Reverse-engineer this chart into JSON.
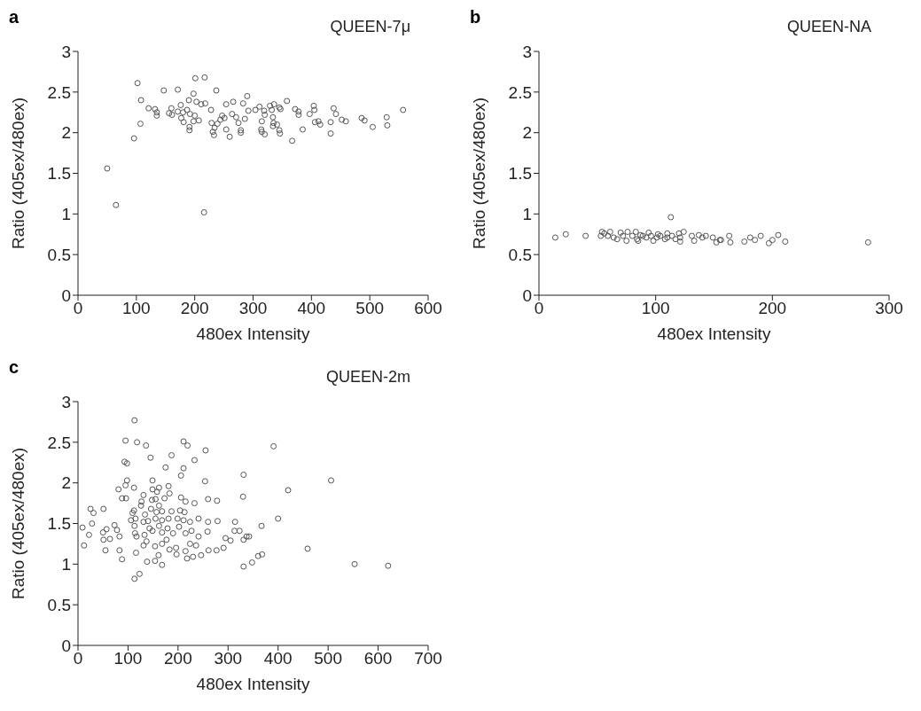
{
  "chart_data": [
    {
      "type": "scatter",
      "title": "QUEEN-7μ",
      "annotations": [
        "a"
      ],
      "xlabel": "480ex Intensity",
      "ylabel": "Ratio (405ex/480ex)",
      "xlim": [
        0,
        600
      ],
      "xticks": [
        0,
        100,
        200,
        300,
        400,
        500,
        600
      ],
      "ylim": [
        0,
        3
      ],
      "yticks": [
        0,
        0.5,
        1,
        1.5,
        2,
        2.5,
        3
      ],
      "marker": "circle",
      "grid": false,
      "legend": false,
      "series": [
        {
          "color": "#555555",
          "x": [
            50,
            65,
            96,
            102,
            108,
            107,
            121,
            132,
            135,
            135,
            147,
            156,
            160,
            161,
            171,
            171,
            176,
            177,
            181,
            180,
            187,
            192,
            200,
            190,
            198,
            191,
            191,
            201,
            217,
            198,
            207,
            203,
            211,
            218,
            216,
            228,
            237,
            229,
            234,
            231,
            233,
            239,
            244,
            247,
            251,
            254,
            254,
            260,
            264,
            266,
            271,
            275,
            279,
            279,
            283,
            286,
            290,
            292,
            304,
            311,
            319,
            320,
            315,
            314,
            315,
            320,
            329,
            334,
            335,
            336,
            332,
            334,
            345,
            346,
            345,
            347,
            341,
            358,
            367,
            372,
            378,
            378,
            385,
            397,
            404,
            405,
            406,
            412,
            415,
            433,
            433,
            438,
            442,
            452,
            459,
            486,
            491,
            505,
            529,
            530,
            557
          ],
          "values": [
            1.56,
            1.11,
            1.93,
            2.61,
            2.4,
            2.11,
            2.3,
            2.29,
            2.25,
            2.21,
            2.52,
            2.24,
            2.3,
            2.22,
            2.53,
            2.26,
            2.34,
            2.18,
            2.13,
            2.25,
            2.28,
            2.23,
            2.21,
            2.4,
            2.48,
            2.07,
            2.03,
            2.67,
            2.68,
            2.14,
            2.15,
            2.38,
            2.35,
            2.36,
            1.02,
            2.28,
            2.52,
            2.12,
            2.06,
            2.01,
            1.97,
            2.11,
            2.16,
            2.21,
            2.18,
            2.35,
            2.04,
            1.95,
            2.23,
            2.38,
            2.19,
            2.12,
            2.03,
            2.0,
            2.36,
            2.17,
            2.45,
            2.27,
            2.28,
            2.32,
            2.27,
            2.22,
            2.14,
            2.04,
            2.01,
            1.98,
            2.33,
            2.19,
            2.12,
            2.35,
            2.28,
            2.08,
            2.03,
            1.99,
            2.31,
            2.29,
            2.1,
            2.39,
            1.9,
            2.29,
            2.26,
            2.22,
            2.04,
            2.23,
            2.33,
            2.28,
            2.13,
            2.14,
            2.1,
            2.13,
            1.99,
            2.3,
            2.23,
            2.16,
            2.14,
            2.18,
            2.15,
            2.07,
            2.19,
            2.09,
            2.28
          ]
        }
      ]
    },
    {
      "type": "scatter",
      "title": "QUEEN-NA",
      "annotations": [
        "b"
      ],
      "xlabel": "480ex Intensity",
      "ylabel": "Ratio (405ex/480ex)",
      "xlim": [
        0,
        300
      ],
      "xticks": [
        0,
        100,
        200,
        300
      ],
      "ylim": [
        0,
        3
      ],
      "yticks": [
        0,
        0.5,
        1,
        1.5,
        2,
        2.5,
        3
      ],
      "marker": "circle",
      "grid": false,
      "legend": false,
      "series": [
        {
          "color": "#555555",
          "x": [
            14,
            23,
            40,
            53,
            54,
            56,
            59,
            61,
            64,
            67,
            70,
            72,
            75,
            76,
            80,
            83,
            84,
            85,
            87,
            89,
            92,
            94,
            96,
            98,
            101,
            102,
            104,
            108,
            110,
            110,
            113,
            114,
            117,
            120,
            121,
            121,
            124,
            131,
            133,
            137,
            140,
            143,
            149,
            152,
            155,
            156,
            163,
            164,
            176,
            181,
            185,
            190,
            197,
            200,
            205,
            211,
            282
          ],
          "values": [
            0.71,
            0.75,
            0.73,
            0.73,
            0.78,
            0.76,
            0.73,
            0.78,
            0.71,
            0.69,
            0.77,
            0.73,
            0.67,
            0.78,
            0.73,
            0.78,
            0.69,
            0.67,
            0.74,
            0.73,
            0.71,
            0.77,
            0.73,
            0.67,
            0.71,
            0.75,
            0.73,
            0.69,
            0.71,
            0.76,
            0.96,
            0.73,
            0.69,
            0.76,
            0.71,
            0.66,
            0.78,
            0.73,
            0.67,
            0.74,
            0.71,
            0.73,
            0.71,
            0.65,
            0.68,
            0.68,
            0.73,
            0.65,
            0.66,
            0.71,
            0.68,
            0.73,
            0.64,
            0.68,
            0.74,
            0.66,
            0.65
          ]
        }
      ]
    },
    {
      "type": "scatter",
      "title": "QUEEN-2m",
      "annotations": [
        "c"
      ],
      "xlabel": "480ex Intensity",
      "ylabel": "Ratio (405ex/480ex)",
      "xlim": [
        0,
        700
      ],
      "xticks": [
        0,
        100,
        200,
        300,
        400,
        500,
        600,
        700
      ],
      "ylim": [
        0,
        3
      ],
      "yticks": [
        0,
        0.5,
        1,
        1.5,
        2,
        2.5,
        3
      ],
      "marker": "circle",
      "grid": false,
      "legend": false,
      "series": [
        {
          "color": "#555555",
          "x": [
            113,
            95,
            118,
            136,
            211,
            219,
            255,
            391,
            93,
            98,
            145,
            187,
            233,
            175,
            211,
            206,
            331,
            98,
            95,
            149,
            254,
            506,
            81,
            112,
            162,
            181,
            420,
            88,
            96,
            131,
            149,
            158,
            183,
            173,
            206,
            215,
            233,
            260,
            278,
            330,
            51,
            112,
            109,
            127,
            126,
            148,
            155,
            146,
            162,
            157,
            168,
            187,
            204,
            213,
            134,
            106,
            115,
            131,
            140,
            155,
            168,
            181,
            199,
            211,
            224,
            241,
            260,
            279,
            314,
            400,
            57,
            73,
            78,
            50,
            51,
            64,
            83,
            113,
            114,
            117,
            133,
            143,
            149,
            162,
            168,
            179,
            190,
            202,
            215,
            227,
            241,
            259,
            313,
            323,
            337,
            367,
            55,
            83,
            88,
            116,
            131,
            137,
            154,
            168,
            177,
            183,
            196,
            197,
            215,
            218,
            224,
            230,
            236,
            246,
            261,
            277,
            291,
            295,
            305,
            331,
            342,
            360,
            368,
            459,
            138,
            154,
            161,
            168,
            331,
            348,
            553,
            620,
            123,
            113,
            25,
            31,
            22,
            12,
            28,
            9
          ],
          "values": [
            2.77,
            2.52,
            2.5,
            2.46,
            2.51,
            2.46,
            2.4,
            2.45,
            2.26,
            2.24,
            2.31,
            2.34,
            2.28,
            2.19,
            2.18,
            2.09,
            2.1,
            2.03,
            1.97,
            2.03,
            2.02,
            2.03,
            1.92,
            1.94,
            1.94,
            1.96,
            1.91,
            1.81,
            1.81,
            1.85,
            1.92,
            1.89,
            1.87,
            1.81,
            1.82,
            1.77,
            1.75,
            1.8,
            1.78,
            1.83,
            1.68,
            1.66,
            1.63,
            1.77,
            1.72,
            1.79,
            1.8,
            1.68,
            1.72,
            1.64,
            1.65,
            1.65,
            1.66,
            1.64,
            1.61,
            1.54,
            1.56,
            1.52,
            1.53,
            1.56,
            1.54,
            1.56,
            1.56,
            1.54,
            1.52,
            1.56,
            1.52,
            1.53,
            1.52,
            1.56,
            1.43,
            1.48,
            1.42,
            1.39,
            1.3,
            1.31,
            1.34,
            1.47,
            1.38,
            1.34,
            1.36,
            1.44,
            1.41,
            1.47,
            1.39,
            1.44,
            1.38,
            1.46,
            1.38,
            1.41,
            1.34,
            1.4,
            1.41,
            1.41,
            1.34,
            1.47,
            1.17,
            1.17,
            1.06,
            1.14,
            1.23,
            1.28,
            1.22,
            1.25,
            1.3,
            1.18,
            1.2,
            1.12,
            1.16,
            1.07,
            1.25,
            1.09,
            1.23,
            1.11,
            1.17,
            1.17,
            1.2,
            1.32,
            1.29,
            1.3,
            1.34,
            1.1,
            1.12,
            1.19,
            1.03,
            1.04,
            1.11,
            0.99,
            0.97,
            1.02,
            1.0,
            0.98,
            0.88,
            0.82,
            1.68,
            1.63,
            1.36,
            1.23,
            1.5,
            1.45
          ]
        }
      ]
    }
  ]
}
